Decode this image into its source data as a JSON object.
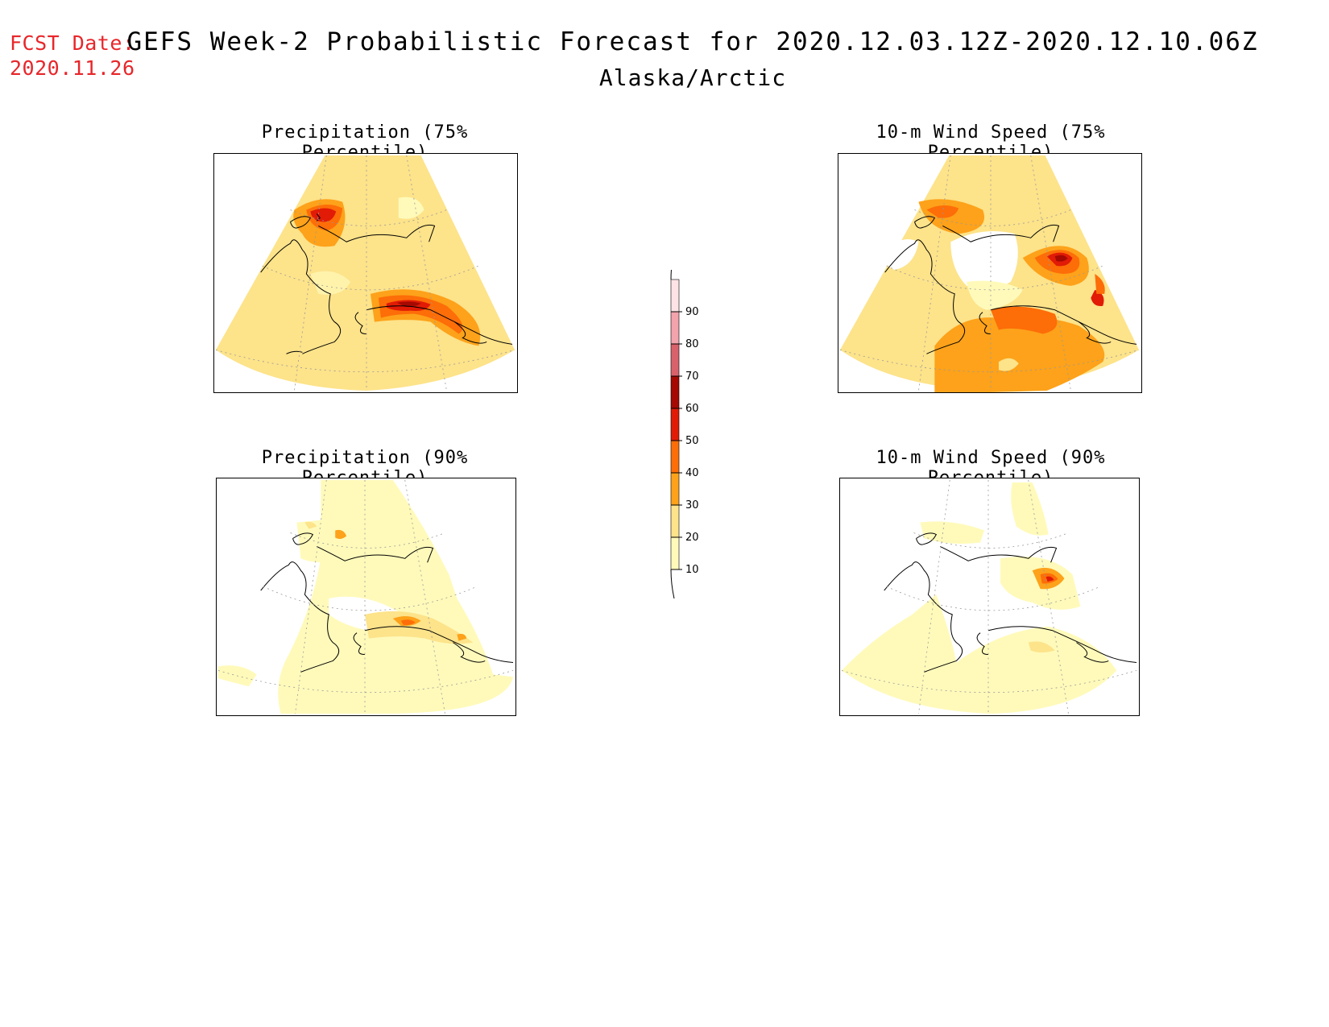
{
  "fcst_date": {
    "label": "FCST Date:",
    "value": "2020.11.26"
  },
  "title": "GEFS Week-2 Probabilistic Forecast for 2020.12.03.12Z-2020.12.10.06Z",
  "subtitle": "Alaska/Arctic",
  "panels": [
    {
      "id": "precip-75",
      "title": "Precipitation (75% Percentile)"
    },
    {
      "id": "wind-75",
      "title": "10-m Wind Speed (75% Percentile)"
    },
    {
      "id": "precip-90",
      "title": "Precipitation (90% Percentile)"
    },
    {
      "id": "wind-90",
      "title": "10-m Wind Speed (90% Percentile)"
    }
  ],
  "legend": {
    "levels": [
      "10",
      "20",
      "30",
      "40",
      "50",
      "60",
      "70",
      "80",
      "90"
    ],
    "colors": [
      "#fffaba",
      "#fde38a",
      "#fda21a",
      "#fd6d08",
      "#e11b06",
      "#a50902",
      "#d9616b",
      "#f2a3ac",
      "#fde3e6"
    ]
  },
  "palette": {
    "white": "#ffffff",
    "pale_yellow": "#fffaba",
    "yellow": "#fde38a",
    "orange": "#fda21a",
    "dark_orange": "#fd6d08",
    "red": "#e11b06",
    "dark_red": "#a50902"
  }
}
